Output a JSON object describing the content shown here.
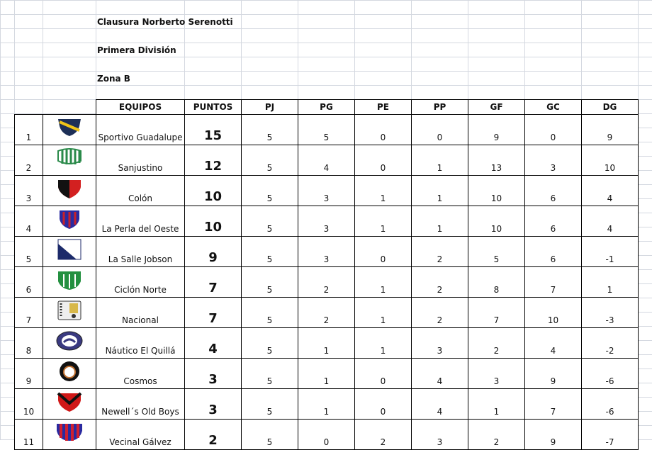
{
  "titles": {
    "tournament": "Clausura Norberto Serenotti",
    "division": "Primera División",
    "zone": "Zona B"
  },
  "headers": [
    "EQUIPOS",
    "PUNTOS",
    "PJ",
    "PG",
    "PE",
    "PP",
    "GF",
    "GC",
    "DG"
  ],
  "rows": [
    {
      "pos": "1",
      "team": "Sportivo Guadalupe",
      "pts": "15",
      "pj": "5",
      "pg": "5",
      "pe": "0",
      "pp": "0",
      "gf": "9",
      "gc": "0",
      "dg": "9",
      "logo": "sportivo-guadalupe-crest"
    },
    {
      "pos": "2",
      "team": "Sanjustino",
      "pts": "12",
      "pj": "5",
      "pg": "4",
      "pe": "0",
      "pp": "1",
      "gf": "13",
      "gc": "3",
      "dg": "10",
      "logo": "sanjustino-crest"
    },
    {
      "pos": "3",
      "team": "Colón",
      "pts": "10",
      "pj": "5",
      "pg": "3",
      "pe": "1",
      "pp": "1",
      "gf": "10",
      "gc": "6",
      "dg": "4",
      "logo": "colon-crest"
    },
    {
      "pos": "4",
      "team": "La Perla del Oeste",
      "pts": "10",
      "pj": "5",
      "pg": "3",
      "pe": "1",
      "pp": "1",
      "gf": "10",
      "gc": "6",
      "dg": "4",
      "logo": "la-perla-crest"
    },
    {
      "pos": "5",
      "team": "La Salle Jobson",
      "pts": "9",
      "pj": "5",
      "pg": "3",
      "pe": "0",
      "pp": "2",
      "gf": "5",
      "gc": "6",
      "dg": "-1",
      "logo": "la-salle-crest"
    },
    {
      "pos": "6",
      "team": "Ciclón Norte",
      "pts": "7",
      "pj": "5",
      "pg": "2",
      "pe": "1",
      "pp": "2",
      "gf": "8",
      "gc": "7",
      "dg": "1",
      "logo": "ciclon-norte-crest"
    },
    {
      "pos": "7",
      "team": "Nacional",
      "pts": "7",
      "pj": "5",
      "pg": "2",
      "pe": "1",
      "pp": "2",
      "gf": "7",
      "gc": "10",
      "dg": "-3",
      "logo": "nacional-crest"
    },
    {
      "pos": "8",
      "team": "Náutico El Quillá",
      "pts": "4",
      "pj": "5",
      "pg": "1",
      "pe": "1",
      "pp": "3",
      "gf": "2",
      "gc": "4",
      "dg": "-2",
      "logo": "nautico-crest"
    },
    {
      "pos": "9",
      "team": "Cosmos",
      "pts": "3",
      "pj": "5",
      "pg": "1",
      "pe": "0",
      "pp": "4",
      "gf": "3",
      "gc": "9",
      "dg": "-6",
      "logo": "cosmos-crest"
    },
    {
      "pos": "10",
      "team": "Newell´s Old Boys",
      "pts": "3",
      "pj": "5",
      "pg": "1",
      "pe": "0",
      "pp": "4",
      "gf": "1",
      "gc": "7",
      "dg": "-6",
      "logo": "newells-crest"
    },
    {
      "pos": "11",
      "team": "Vecinal Gálvez",
      "pts": "2",
      "pj": "5",
      "pg": "0",
      "pe": "2",
      "pp": "3",
      "gf": "2",
      "gc": "9",
      "dg": "-7",
      "logo": "vecinal-galvez-crest"
    }
  ]
}
